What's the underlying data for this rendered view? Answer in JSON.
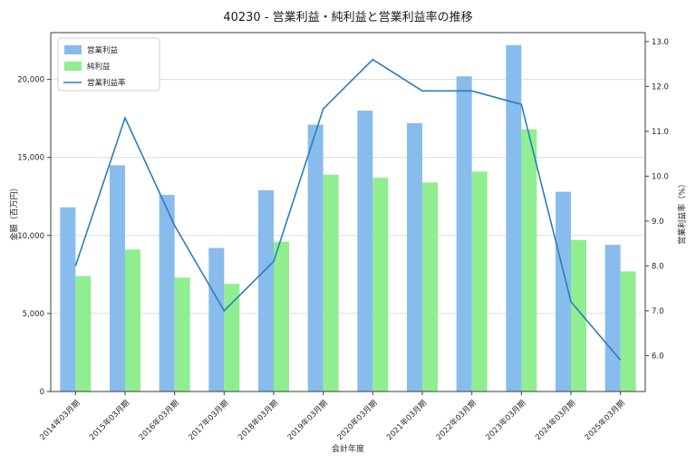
{
  "chart_data": {
    "type": "bar+line",
    "title": "40230 - 営業利益・純利益と営業利益率の推移",
    "xlabel": "会計年度",
    "categories": [
      "2014年03月期",
      "2015年03月期",
      "2016年03月期",
      "2017年03月期",
      "2018年03月期",
      "2019年03月期",
      "2020年03月期",
      "2021年03月期",
      "2022年03月期",
      "2023年03月期",
      "2024年03月期",
      "2025年03月期"
    ],
    "series": [
      {
        "name": "営業利益",
        "type": "bar",
        "axis": "left",
        "color": "#88BCEC",
        "values": [
          11800,
          14500,
          12600,
          9200,
          12900,
          17100,
          18000,
          17200,
          20200,
          22200,
          12800,
          9400
        ]
      },
      {
        "name": "純利益",
        "type": "bar",
        "axis": "left",
        "color": "#90EE90",
        "values": [
          7400,
          9100,
          7300,
          6900,
          9600,
          13900,
          13700,
          13400,
          14100,
          16800,
          9700,
          7700
        ]
      },
      {
        "name": "営業利益率",
        "type": "line",
        "axis": "right",
        "color": "#2D7DBB",
        "values": [
          8.0,
          11.3,
          8.9,
          7.0,
          8.1,
          11.5,
          12.6,
          11.9,
          11.9,
          11.6,
          7.2,
          5.9
        ]
      }
    ],
    "y_left": {
      "label": "金額（百万円）",
      "ticks": [
        0,
        5000,
        10000,
        15000,
        20000
      ],
      "min": 0,
      "max": 23000
    },
    "y_right": {
      "label": "営業利益率（%）",
      "ticks": [
        6,
        7,
        8,
        9,
        10,
        11,
        12,
        13
      ],
      "min": 5.2,
      "max": 13.2
    },
    "grid": true,
    "legend_position": "upper left"
  }
}
